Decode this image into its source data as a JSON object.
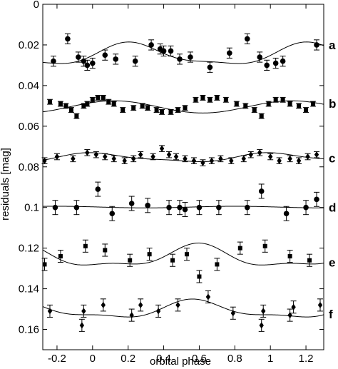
{
  "chart_data": {
    "type": "scatter",
    "xlabel": "orbital phase",
    "ylabel": "residuals  [mag]",
    "xlim": [
      -0.28,
      1.3
    ],
    "ylim": [
      0.17,
      0
    ],
    "y_inverted": true,
    "x_ticks": [
      -0.2,
      0,
      0.2,
      0.4,
      0.6,
      0.8,
      1,
      1.2
    ],
    "x_tick_labels": [
      "-0.2",
      "0",
      "0.2",
      "0.4",
      "0.6",
      "0.8",
      "1",
      "1.2"
    ],
    "y_ticks": [
      0,
      0.02,
      0.04,
      0.06,
      0.08,
      0.1,
      0.12,
      0.14,
      0.16
    ],
    "y_tick_labels": [
      "0",
      "0.02",
      "0.04",
      "0.06",
      "0.08",
      "0.1",
      "0.12",
      "0.14",
      "0.16"
    ],
    "grid": false,
    "series": [
      {
        "name": "a",
        "marker": "circle",
        "err": 0.0025,
        "fit": {
          "offset": 0.025,
          "amps": [
            [
              2,
              0.005
            ],
            [
              4,
              0.0015
            ]
          ],
          "phases": [
            [
              2,
              0.72
            ],
            [
              4,
              0.44
            ]
          ]
        },
        "points": [
          [
            -0.22,
            0.028
          ],
          [
            -0.14,
            0.017
          ],
          [
            -0.08,
            0.026
          ],
          [
            -0.05,
            0.028
          ],
          [
            -0.03,
            0.03
          ],
          [
            0.0,
            0.029
          ],
          [
            0.07,
            0.025
          ],
          [
            0.13,
            0.027
          ],
          [
            0.24,
            0.028
          ],
          [
            0.33,
            0.02
          ],
          [
            0.38,
            0.022
          ],
          [
            0.4,
            0.023
          ],
          [
            0.44,
            0.023
          ],
          [
            0.49,
            0.027
          ],
          [
            0.55,
            0.026
          ],
          [
            0.66,
            0.031
          ],
          [
            0.77,
            0.024
          ],
          [
            0.87,
            0.017
          ],
          [
            0.94,
            0.026
          ],
          [
            0.98,
            0.03
          ],
          [
            1.03,
            0.029
          ],
          [
            1.07,
            0.028
          ],
          [
            1.26,
            0.02
          ]
        ]
      },
      {
        "name": "b",
        "marker": "square",
        "err": 0.0012,
        "fit": {
          "offset": 0.0505,
          "amps": [
            [
              2,
              0.003
            ]
          ],
          "phases": [
            [
              2,
              0.62
            ]
          ]
        },
        "points": [
          [
            -0.24,
            0.048
          ],
          [
            -0.18,
            0.049
          ],
          [
            -0.15,
            0.05
          ],
          [
            -0.12,
            0.052
          ],
          [
            -0.09,
            0.055
          ],
          [
            -0.05,
            0.05
          ],
          [
            -0.03,
            0.049
          ],
          [
            0.0,
            0.047
          ],
          [
            0.03,
            0.046
          ],
          [
            0.06,
            0.046
          ],
          [
            0.09,
            0.048
          ],
          [
            0.12,
            0.049
          ],
          [
            0.17,
            0.052
          ],
          [
            0.23,
            0.051
          ],
          [
            0.28,
            0.05
          ],
          [
            0.31,
            0.051
          ],
          [
            0.36,
            0.052
          ],
          [
            0.39,
            0.053
          ],
          [
            0.44,
            0.053
          ],
          [
            0.48,
            0.052
          ],
          [
            0.52,
            0.051
          ],
          [
            0.58,
            0.047
          ],
          [
            0.62,
            0.046
          ],
          [
            0.66,
            0.047
          ],
          [
            0.7,
            0.046
          ],
          [
            0.75,
            0.047
          ],
          [
            0.81,
            0.049
          ],
          [
            0.86,
            0.05
          ],
          [
            0.91,
            0.052
          ],
          [
            0.95,
            0.055
          ],
          [
            0.99,
            0.049
          ],
          [
            1.03,
            0.047
          ],
          [
            1.07,
            0.047
          ],
          [
            1.11,
            0.049
          ],
          [
            1.16,
            0.05
          ],
          [
            1.2,
            0.052
          ],
          [
            1.24,
            0.049
          ]
        ]
      },
      {
        "name": "c",
        "marker": "diamond",
        "err": 0.0015,
        "fit": {
          "offset": 0.0755,
          "amps": [
            [
              2,
              0.002
            ],
            [
              4,
              0.0006
            ]
          ],
          "phases": [
            [
              2,
              0.52
            ],
            [
              4,
              0.2
            ]
          ]
        },
        "points": [
          [
            -0.27,
            0.077
          ],
          [
            -0.2,
            0.075
          ],
          [
            -0.11,
            0.076
          ],
          [
            -0.03,
            0.073
          ],
          [
            0.02,
            0.074
          ],
          [
            0.07,
            0.075
          ],
          [
            0.12,
            0.076
          ],
          [
            0.18,
            0.077
          ],
          [
            0.23,
            0.076
          ],
          [
            0.27,
            0.074
          ],
          [
            0.34,
            0.075
          ],
          [
            0.39,
            0.071
          ],
          [
            0.43,
            0.074
          ],
          [
            0.47,
            0.075
          ],
          [
            0.52,
            0.076
          ],
          [
            0.57,
            0.077
          ],
          [
            0.62,
            0.078
          ],
          [
            0.67,
            0.077
          ],
          [
            0.72,
            0.076
          ],
          [
            0.78,
            0.077
          ],
          [
            0.85,
            0.076
          ],
          [
            0.89,
            0.074
          ],
          [
            0.94,
            0.073
          ],
          [
            1.0,
            0.075
          ],
          [
            1.05,
            0.077
          ],
          [
            1.11,
            0.076
          ],
          [
            1.16,
            0.077
          ],
          [
            1.21,
            0.075
          ],
          [
            1.26,
            0.074
          ]
        ]
      },
      {
        "name": "d",
        "marker": "circle",
        "err": 0.0035,
        "fit": {
          "offset": 0.0998,
          "amps": [
            [
              2,
              0.0004
            ]
          ],
          "phases": [
            [
              2,
              0.3
            ]
          ]
        },
        "points": [
          [
            -0.21,
            0.1
          ],
          [
            -0.09,
            0.1
          ],
          [
            0.03,
            0.091
          ],
          [
            0.11,
            0.103
          ],
          [
            0.22,
            0.098
          ],
          [
            0.31,
            0.099
          ],
          [
            0.43,
            0.1
          ],
          [
            0.49,
            0.1
          ],
          [
            0.52,
            0.101
          ],
          [
            0.6,
            0.1
          ],
          [
            0.71,
            0.1
          ],
          [
            0.87,
            0.1
          ],
          [
            0.95,
            0.092
          ],
          [
            1.09,
            0.103
          ],
          [
            1.2,
            0.1
          ],
          [
            1.26,
            0.096
          ]
        ]
      },
      {
        "name": "e",
        "marker": "square",
        "err": 0.003,
        "fit": {
          "offset": 0.1245,
          "amps": [
            [
              2,
              0.005
            ],
            [
              4,
              0.002
            ]
          ],
          "phases": [
            [
              2,
              0.09
            ],
            [
              4,
              0.35
            ]
          ]
        },
        "points": [
          [
            -0.27,
            0.128
          ],
          [
            -0.18,
            0.124
          ],
          [
            -0.04,
            0.119
          ],
          [
            0.07,
            0.121
          ],
          [
            0.21,
            0.126
          ],
          [
            0.32,
            0.123
          ],
          [
            0.45,
            0.126
          ],
          [
            0.53,
            0.123
          ],
          [
            0.6,
            0.134
          ],
          [
            0.7,
            0.128
          ],
          [
            0.83,
            0.12
          ],
          [
            0.97,
            0.119
          ],
          [
            1.11,
            0.124
          ],
          [
            1.22,
            0.126
          ]
        ]
      },
      {
        "name": "f",
        "marker": "diamond",
        "err": 0.003,
        "fit": {
          "offset": 0.1505,
          "amps": [
            [
              2,
              0.004
            ],
            [
              4,
              0.0015
            ]
          ],
          "phases": [
            [
              2,
              0.08
            ],
            [
              4,
              0.3
            ]
          ]
        },
        "points": [
          [
            -0.24,
            0.151
          ],
          [
            -0.06,
            0.158
          ],
          [
            -0.05,
            0.151
          ],
          [
            0.06,
            0.148
          ],
          [
            0.22,
            0.153
          ],
          [
            0.27,
            0.148
          ],
          [
            0.37,
            0.151
          ],
          [
            0.48,
            0.148
          ],
          [
            0.65,
            0.144
          ],
          [
            0.79,
            0.152
          ],
          [
            0.95,
            0.158
          ],
          [
            0.96,
            0.151
          ],
          [
            1.11,
            0.153
          ],
          [
            1.13,
            0.149
          ],
          [
            1.28,
            0.148
          ]
        ]
      }
    ]
  }
}
